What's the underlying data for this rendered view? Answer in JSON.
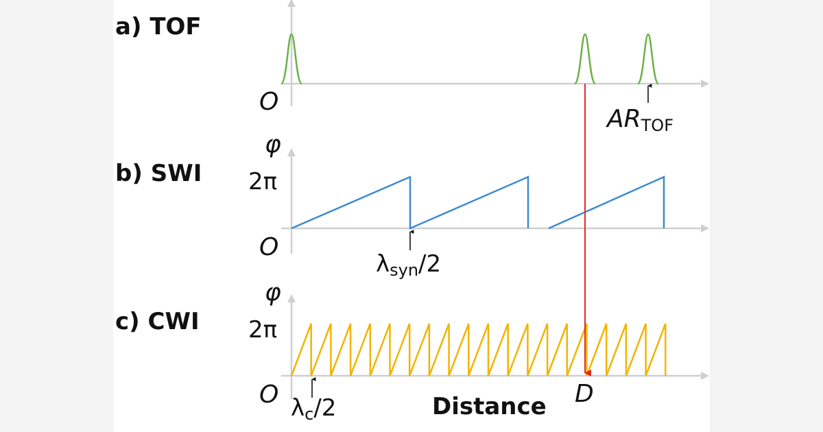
{
  "panels": [
    {
      "label": "a) TOF",
      "origin": "O",
      "annotation": {
        "main": "AR",
        "sub": "TOF"
      }
    },
    {
      "label": "b) SWI",
      "origin": "O",
      "axis_label": "φ",
      "tick": "2π",
      "annotation": {
        "main": "λ",
        "sub": "syn",
        "tail": "/2"
      }
    },
    {
      "label": "c) CWI",
      "origin": "O",
      "axis_label": "φ",
      "tick": "2π",
      "annotation": {
        "main": "λ",
        "sub": "c",
        "tail": "/2"
      }
    }
  ],
  "x_axis_label": "Distance",
  "marker": "D"
}
